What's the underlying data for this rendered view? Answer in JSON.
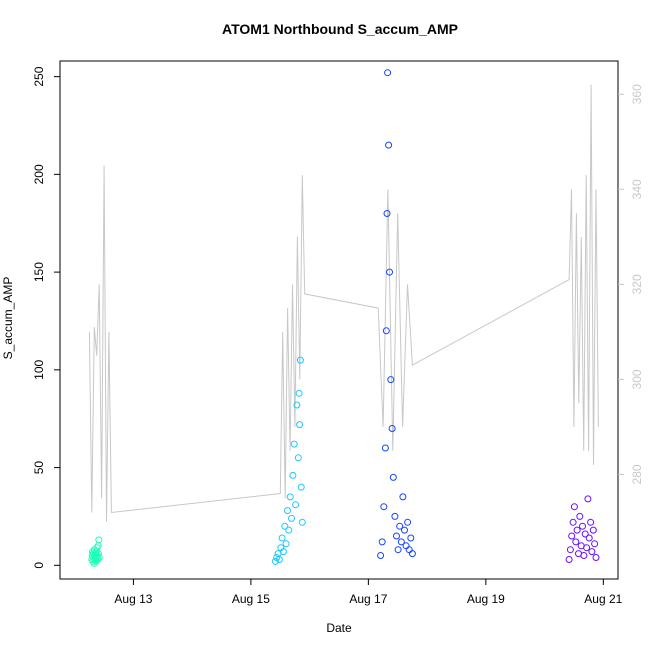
{
  "chart_data": {
    "type": "scatter",
    "title": "ATOM1 Northbound S_accum_AMP",
    "xlabel": "Date",
    "ylabel": "S_accum_AMP",
    "xlim": [
      "2022-08-11 18:00",
      "2022-08-21 06:00"
    ],
    "ylim": [
      -7,
      258
    ],
    "y2lim": [
      258,
      367
    ],
    "x_ticks": [
      {
        "value": "2022-08-13",
        "label": "Aug 13"
      },
      {
        "value": "2022-08-15",
        "label": "Aug 15"
      },
      {
        "value": "2022-08-17",
        "label": "Aug 17"
      },
      {
        "value": "2022-08-19",
        "label": "Aug 19"
      },
      {
        "value": "2022-08-21",
        "label": "Aug 21"
      }
    ],
    "y_ticks": [
      0,
      50,
      100,
      150,
      200,
      250
    ],
    "y2_ticks": [
      280,
      300,
      320,
      340,
      360
    ],
    "grid": false,
    "series": [
      {
        "color": "#1fffb9",
        "start": "2022-08-12 07:00",
        "end": "2022-08-12 10:00",
        "points": [
          [
            0,
            3
          ],
          [
            0.05,
            5
          ],
          [
            0.1,
            7
          ],
          [
            0.15,
            2
          ],
          [
            0.2,
            6
          ],
          [
            0.25,
            4
          ],
          [
            0.3,
            1
          ],
          [
            0.35,
            8
          ],
          [
            0.4,
            5
          ],
          [
            0.45,
            3
          ],
          [
            0.5,
            6
          ],
          [
            0.55,
            2
          ],
          [
            0.6,
            7
          ],
          [
            0.65,
            4
          ],
          [
            0.7,
            9
          ],
          [
            0.75,
            5
          ],
          [
            0.8,
            3
          ],
          [
            0.85,
            10
          ],
          [
            0.9,
            6
          ],
          [
            0.95,
            13
          ],
          [
            1,
            4
          ]
        ]
      },
      {
        "color": "#1ec8ff",
        "start": "2022-08-15 10:00",
        "end": "2022-08-15 21:00",
        "points": [
          [
            0,
            2
          ],
          [
            0.05,
            4
          ],
          [
            0.1,
            6
          ],
          [
            0.15,
            3
          ],
          [
            0.2,
            9
          ],
          [
            0.25,
            14
          ],
          [
            0.3,
            7
          ],
          [
            0.35,
            20
          ],
          [
            0.4,
            11
          ],
          [
            0.45,
            28
          ],
          [
            0.5,
            18
          ],
          [
            0.55,
            35
          ],
          [
            0.6,
            24
          ],
          [
            0.65,
            46
          ],
          [
            0.7,
            62
          ],
          [
            0.75,
            31
          ],
          [
            0.8,
            82
          ],
          [
            0.85,
            55
          ],
          [
            0.88,
            88
          ],
          [
            0.9,
            72
          ],
          [
            0.93,
            105
          ],
          [
            0.96,
            40
          ],
          [
            1,
            22
          ]
        ]
      },
      {
        "color": "#1446ff",
        "start": "2022-08-17 05:00",
        "end": "2022-08-17 18:00",
        "points": [
          [
            0,
            5
          ],
          [
            0.05,
            12
          ],
          [
            0.1,
            30
          ],
          [
            0.15,
            60
          ],
          [
            0.18,
            120
          ],
          [
            0.2,
            180
          ],
          [
            0.22,
            252
          ],
          [
            0.25,
            215
          ],
          [
            0.28,
            150
          ],
          [
            0.32,
            95
          ],
          [
            0.36,
            70
          ],
          [
            0.4,
            45
          ],
          [
            0.45,
            25
          ],
          [
            0.5,
            15
          ],
          [
            0.55,
            8
          ],
          [
            0.6,
            20
          ],
          [
            0.65,
            12
          ],
          [
            0.7,
            35
          ],
          [
            0.75,
            18
          ],
          [
            0.8,
            10
          ],
          [
            0.85,
            22
          ],
          [
            0.9,
            8
          ],
          [
            0.95,
            14
          ],
          [
            1,
            6
          ]
        ]
      },
      {
        "color": "#6a10ff",
        "start": "2022-08-20 10:00",
        "end": "2022-08-20 21:00",
        "points": [
          [
            0,
            3
          ],
          [
            0.05,
            8
          ],
          [
            0.1,
            15
          ],
          [
            0.15,
            22
          ],
          [
            0.2,
            30
          ],
          [
            0.25,
            12
          ],
          [
            0.3,
            18
          ],
          [
            0.35,
            6
          ],
          [
            0.4,
            25
          ],
          [
            0.45,
            10
          ],
          [
            0.5,
            20
          ],
          [
            0.55,
            5
          ],
          [
            0.6,
            16
          ],
          [
            0.65,
            9
          ],
          [
            0.7,
            34
          ],
          [
            0.75,
            14
          ],
          [
            0.8,
            22
          ],
          [
            0.85,
            7
          ],
          [
            0.9,
            18
          ],
          [
            0.95,
            11
          ],
          [
            1,
            4
          ]
        ]
      }
    ],
    "secondary_line": {
      "color": "#c8c8c8",
      "points": [
        [
          "2022-08-12 06:00",
          310
        ],
        [
          "2022-08-12 07:00",
          272
        ],
        [
          "2022-08-12 08:00",
          311
        ],
        [
          "2022-08-12 09:00",
          305
        ],
        [
          "2022-08-12 10:00",
          320
        ],
        [
          "2022-08-12 11:00",
          275
        ],
        [
          "2022-08-12 12:00",
          345
        ],
        [
          "2022-08-12 13:00",
          270
        ],
        [
          "2022-08-12 14:00",
          310
        ],
        [
          "2022-08-12 15:00",
          272
        ],
        [
          "2022-08-15 12:00",
          276
        ],
        [
          "2022-08-15 13:00",
          310
        ],
        [
          "2022-08-15 14:00",
          275
        ],
        [
          "2022-08-15 15:00",
          315
        ],
        [
          "2022-08-15 16:00",
          285
        ],
        [
          "2022-08-15 17:00",
          320
        ],
        [
          "2022-08-15 18:00",
          290
        ],
        [
          "2022-08-15 19:00",
          330
        ],
        [
          "2022-08-15 20:00",
          300
        ],
        [
          "2022-08-15 21:00",
          343
        ],
        [
          "2022-08-15 22:00",
          318
        ],
        [
          "2022-08-17 04:00",
          315
        ],
        [
          "2022-08-17 06:00",
          290
        ],
        [
          "2022-08-17 08:00",
          340
        ],
        [
          "2022-08-17 10:00",
          285
        ],
        [
          "2022-08-17 12:00",
          335
        ],
        [
          "2022-08-17 14:00",
          290
        ],
        [
          "2022-08-17 16:00",
          320
        ],
        [
          "2022-08-17 18:00",
          303
        ],
        [
          "2022-08-20 10:00",
          321
        ],
        [
          "2022-08-20 11:00",
          340
        ],
        [
          "2022-08-20 12:00",
          290
        ],
        [
          "2022-08-20 13:00",
          335
        ],
        [
          "2022-08-20 14:00",
          295
        ],
        [
          "2022-08-20 15:00",
          330
        ],
        [
          "2022-08-20 16:00",
          285
        ],
        [
          "2022-08-20 17:00",
          343
        ],
        [
          "2022-08-20 18:00",
          285
        ],
        [
          "2022-08-20 19:00",
          362
        ],
        [
          "2022-08-20 20:00",
          282
        ],
        [
          "2022-08-20 21:00",
          340
        ],
        [
          "2022-08-20 22:00",
          290
        ]
      ]
    }
  }
}
